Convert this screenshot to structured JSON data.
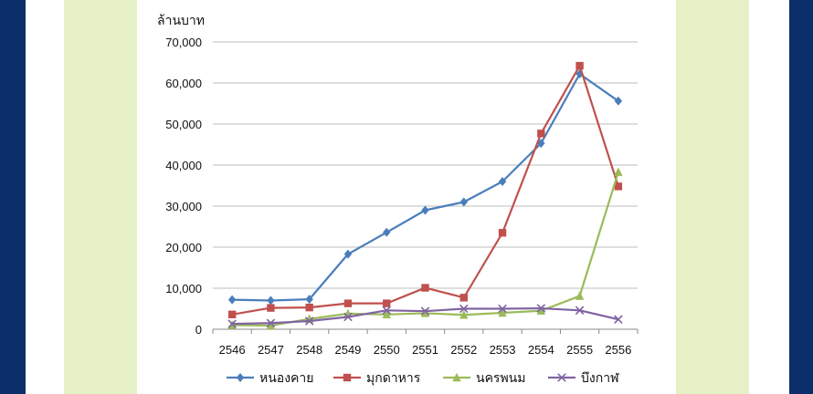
{
  "chart_data": {
    "type": "line",
    "ylabel": "ล้านบาท",
    "x": [
      "2546",
      "2547",
      "2548",
      "2549",
      "2550",
      "2551",
      "2552",
      "2553",
      "2554",
      "2555",
      "2556"
    ],
    "ylim": [
      0,
      70000
    ],
    "yticks": [
      "0",
      "10,000",
      "20,000",
      "30,000",
      "40,000",
      "50,000",
      "60,000",
      "70,000"
    ],
    "grid": true,
    "legend": "bottom",
    "series": [
      {
        "name": "หนองคาย",
        "color": "#4a7ebb",
        "marker": "diamond",
        "values": [
          7200,
          7000,
          7300,
          18300,
          23600,
          29000,
          31000,
          36000,
          45300,
          62200,
          55600
        ]
      },
      {
        "name": "มุกดาหาร",
        "color": "#c0504d",
        "marker": "square",
        "values": [
          3600,
          5200,
          5300,
          6300,
          6300,
          10100,
          7700,
          23500,
          47700,
          64200,
          34800
        ]
      },
      {
        "name": "นครพนม",
        "color": "#9bbb59",
        "marker": "triangle",
        "values": [
          1000,
          900,
          2500,
          3800,
          3600,
          3900,
          3500,
          4000,
          4500,
          8100,
          38300
        ]
      },
      {
        "name": "บึงกาฬ",
        "color": "#8064a2",
        "marker": "x",
        "values": [
          1300,
          1500,
          2000,
          3000,
          4600,
          4400,
          5000,
          5000,
          5100,
          4600,
          2400
        ]
      }
    ]
  }
}
